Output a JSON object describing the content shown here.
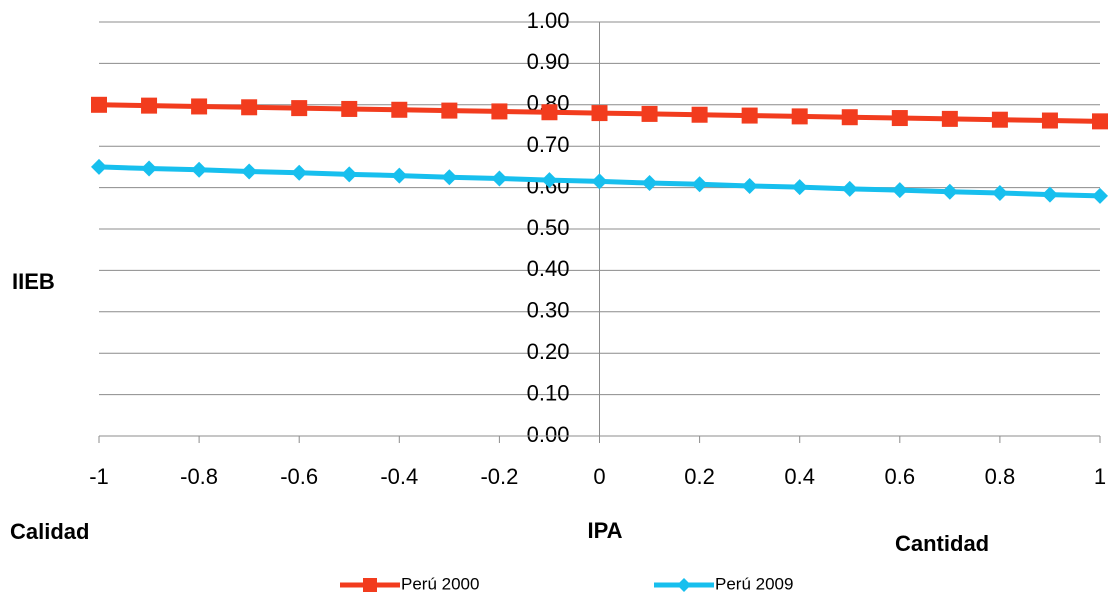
{
  "chart_data": {
    "type": "line",
    "xlabel": "IPA",
    "ylabel": "IIEB",
    "annotations": [
      "Calidad",
      "Cantidad"
    ],
    "x": [
      -1,
      -0.9,
      -0.8,
      -0.7,
      -0.6,
      -0.5,
      -0.4,
      -0.3,
      -0.2,
      -0.1,
      0,
      0.1,
      0.2,
      0.3,
      0.4,
      0.5,
      0.6,
      0.7,
      0.8,
      0.9,
      1
    ],
    "series": [
      {
        "name": "Perú  2000",
        "color": "#f23c1e",
        "marker": "square",
        "values": [
          0.8,
          0.798,
          0.796,
          0.794,
          0.792,
          0.79,
          0.788,
          0.786,
          0.784,
          0.782,
          0.78,
          0.778,
          0.776,
          0.774,
          0.772,
          0.77,
          0.768,
          0.766,
          0.764,
          0.762,
          0.76
        ]
      },
      {
        "name": "Perú 2009",
        "color": "#17bfee",
        "marker": "diamond",
        "values": [
          0.65,
          0.646,
          0.643,
          0.639,
          0.636,
          0.632,
          0.629,
          0.625,
          0.622,
          0.618,
          0.615,
          0.611,
          0.608,
          0.604,
          0.601,
          0.597,
          0.594,
          0.59,
          0.587,
          0.583,
          0.58
        ]
      }
    ],
    "xlim": [
      -1,
      1
    ],
    "xticks": [
      -1,
      -0.8,
      -0.6,
      -0.4,
      -0.2,
      0,
      0.2,
      0.4,
      0.6,
      0.8,
      1
    ],
    "ylim": [
      0,
      1
    ],
    "yticks": [
      {
        "value": 0,
        "label": "0.00"
      },
      {
        "value": 0.1,
        "label": "0.10"
      },
      {
        "value": 0.2,
        "label": "0.20"
      },
      {
        "value": 0.3,
        "label": "0.30"
      },
      {
        "value": 0.4,
        "label": "0.40"
      },
      {
        "value": 0.5,
        "label": "0.50"
      },
      {
        "value": 0.6,
        "label": "0.60"
      },
      {
        "value": 0.7,
        "label": "0.70"
      },
      {
        "value": 0.8,
        "label": "0.80"
      },
      {
        "value": 0.9,
        "label": "0.90"
      },
      {
        "value": 1,
        "label": "1.00"
      }
    ],
    "grid": true,
    "legend": "bottom"
  }
}
